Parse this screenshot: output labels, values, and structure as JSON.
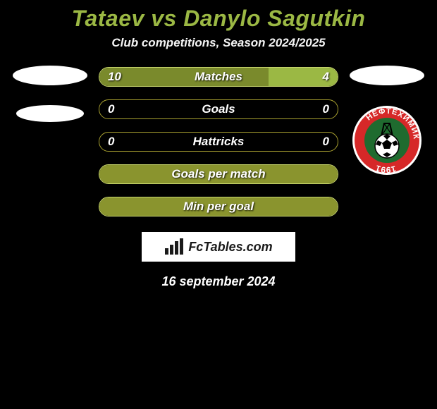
{
  "title": "Tataev vs Danylo Sagutkin",
  "subtitle": "Club competitions, Season 2024/2025",
  "brand": "FcTables.com",
  "date": "16 september 2024",
  "colors": {
    "accent": "#9bb844",
    "bar_left_fill": "#7a8a2c",
    "bar_right_fill": "#9bb844",
    "bar_border": "#c8d66e",
    "bar_empty_border": "#a8a030",
    "bg": "#000000",
    "text": "#ffffff",
    "title_color": "#9bb844"
  },
  "stats": [
    {
      "label": "Matches",
      "left_value": "10",
      "right_value": "4",
      "left_pct": 71,
      "right_pct": 29,
      "left_fill": "#7a8a2c",
      "right_fill": "#9bb844",
      "show_values": true
    },
    {
      "label": "Goals",
      "left_value": "0",
      "right_value": "0",
      "left_pct": 0,
      "right_pct": 0,
      "left_fill": "#7a8a2c",
      "right_fill": "#9bb844",
      "show_values": true
    },
    {
      "label": "Hattricks",
      "left_value": "0",
      "right_value": "0",
      "left_pct": 0,
      "right_pct": 0,
      "left_fill": "#7a8a2c",
      "right_fill": "#9bb844",
      "show_values": true
    },
    {
      "label": "Goals per match",
      "left_value": "",
      "right_value": "",
      "left_pct": 100,
      "right_pct": 0,
      "left_fill": "#8a942e",
      "right_fill": "#9bb844",
      "show_values": false
    },
    {
      "label": "Min per goal",
      "left_value": "",
      "right_value": "",
      "left_pct": 100,
      "right_pct": 0,
      "left_fill": "#8a942e",
      "right_fill": "#9bb844",
      "show_values": false
    }
  ],
  "club_badge": {
    "name": "НЕФТЕХИМИК",
    "year": "1991",
    "ring_color": "#d62828",
    "ring_text_color": "#ffffff",
    "inner_bg": "#1f6b2f",
    "ball_color": "#ffffff"
  }
}
